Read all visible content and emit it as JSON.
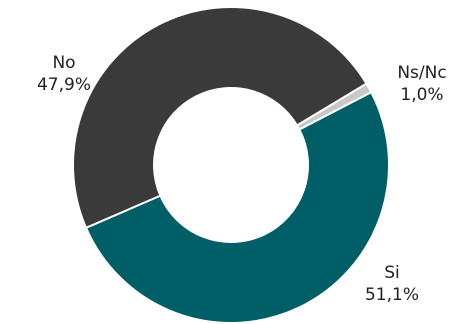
{
  "chart_data": {
    "type": "pie",
    "variant": "donut",
    "title": "",
    "legend": "none",
    "slices": [
      {
        "name": "Ns/Nc",
        "value": 1.0,
        "value_label": "1,0%",
        "color": "#c8c8c8"
      },
      {
        "name": "Si",
        "value": 51.1,
        "value_label": "51,1%",
        "color": "#005f66"
      },
      {
        "name": "No",
        "value": 47.9,
        "value_label": "47,9%",
        "color": "#3a3a3a"
      }
    ]
  }
}
